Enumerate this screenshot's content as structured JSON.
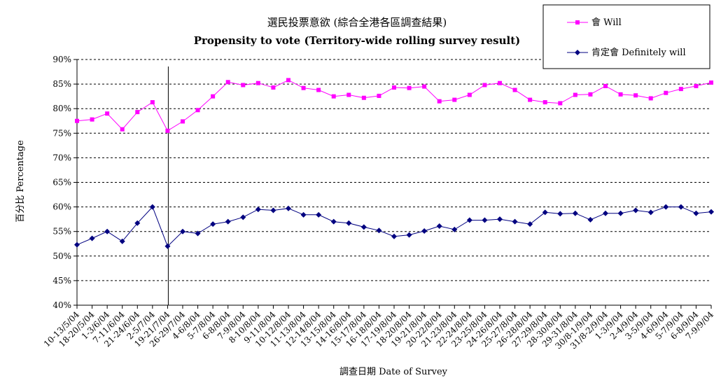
{
  "chart_data": {
    "type": "line",
    "title": "選民投票意欲 (綜合全港各區調查結果)",
    "subtitle": "Propensity to vote (Territory-wide rolling survey result)",
    "xlabel": "調查日期 Date of Survey",
    "ylabel": "百分比 Percentage",
    "ylim": [
      40,
      90
    ],
    "yticks": [
      "40%",
      "45%",
      "50%",
      "55%",
      "60%",
      "65%",
      "70%",
      "75%",
      "80%",
      "85%",
      "90%"
    ],
    "grid": "horizontal dashed",
    "legend_position": "top-right",
    "categories": [
      "10-13/5/04",
      "18-20/5/04",
      "1-3/6/04",
      "7-11/6/04",
      "21-24/6/04",
      "2-5/7/04",
      "19-21/7/04",
      "26-29/7/04",
      "4-6/8/04",
      "5-7/8/04",
      "6-8/8/04",
      "7-9/8/04",
      "8-10/8/04",
      "9-11/8/04",
      "10-12/8/04",
      "11-13/8/04",
      "12-14/8/04",
      "13-15/8/04",
      "14-16/8/04",
      "15-17/8/04",
      "16-18/8/04",
      "17-19/8/04",
      "18-20/8/04",
      "19-21/8/04",
      "20-22/8/04",
      "21-23/8/04",
      "22-24/8/04",
      "23-25/8/04",
      "24-26/8/04",
      "25-27/8/04",
      "26-28/8/04",
      "27-29/8/04",
      "28-30/8/04",
      "29-31/8/04",
      "30/8-1/9/04",
      "31/8-2/9/04",
      "1-3/9/04",
      "2-4/9/04",
      "3-5/9/04",
      "4-6/9/04",
      "5-7/9/04",
      "6-8/9/04",
      "7-9/9/04"
    ],
    "divider_after_index": 5,
    "series": [
      {
        "name": "會 Will",
        "color": "#ff00ff",
        "marker": "square",
        "values": [
          77.5,
          77.8,
          79.0,
          75.8,
          79.3,
          81.3,
          75.5,
          77.4,
          79.7,
          82.5,
          85.4,
          84.8,
          85.2,
          84.3,
          85.8,
          84.2,
          83.8,
          82.5,
          82.8,
          82.2,
          82.6,
          84.3,
          84.2,
          84.5,
          81.5,
          81.8,
          82.8,
          84.8,
          85.2,
          83.8,
          81.8,
          81.3,
          81.1,
          82.8,
          82.9,
          84.6,
          82.9,
          82.7,
          82.1,
          83.2,
          84.0,
          84.6,
          85.3
        ]
      },
      {
        "name": "肯定會 Definitely will",
        "color": "#000080",
        "marker": "diamond",
        "values": [
          52.3,
          53.6,
          55.0,
          53.0,
          56.7,
          60.0,
          52.0,
          55.0,
          54.6,
          56.5,
          57.0,
          57.9,
          59.5,
          59.3,
          59.7,
          58.4,
          58.4,
          57.0,
          56.7,
          55.9,
          55.2,
          54.0,
          54.3,
          55.1,
          56.1,
          55.4,
          57.3,
          57.3,
          57.5,
          57.0,
          56.5,
          58.9,
          58.6,
          58.7,
          57.4,
          58.7,
          58.7,
          59.3,
          58.9,
          60.0,
          60.0,
          58.7,
          59.0
        ]
      }
    ]
  }
}
